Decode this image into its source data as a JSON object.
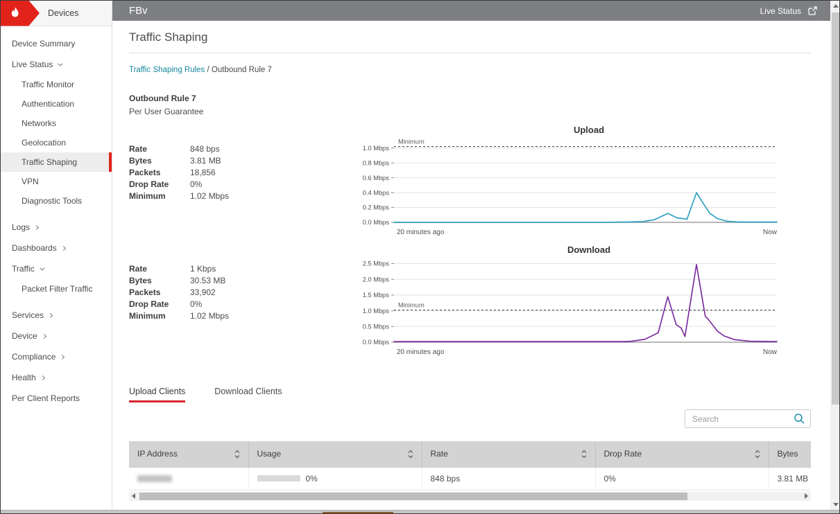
{
  "topbar": {
    "device_name": "FBv",
    "live_status_label": "Live Status"
  },
  "sidebar": {
    "header_label": "Devices",
    "items": [
      {
        "label": "Device Summary",
        "level": 0,
        "chevron": "none",
        "selected": false,
        "group_gap": false
      },
      {
        "label": "Live Status",
        "level": 0,
        "chevron": "down",
        "selected": false,
        "group_gap": false
      },
      {
        "label": "Traffic Monitor",
        "level": 1,
        "chevron": "none",
        "selected": false,
        "group_gap": false
      },
      {
        "label": "Authentication",
        "level": 1,
        "chevron": "none",
        "selected": false,
        "group_gap": false
      },
      {
        "label": "Networks",
        "level": 1,
        "chevron": "none",
        "selected": false,
        "group_gap": false
      },
      {
        "label": "Geolocation",
        "level": 1,
        "chevron": "none",
        "selected": false,
        "group_gap": false
      },
      {
        "label": "Traffic Shaping",
        "level": 1,
        "chevron": "none",
        "selected": true,
        "group_gap": false
      },
      {
        "label": "VPN",
        "level": 1,
        "chevron": "none",
        "selected": false,
        "group_gap": false
      },
      {
        "label": "Diagnostic Tools",
        "level": 1,
        "chevron": "none",
        "selected": false,
        "group_gap": false
      },
      {
        "label": "Logs",
        "level": 0,
        "chevron": "right",
        "selected": false,
        "group_gap": true
      },
      {
        "label": "Dashboards",
        "level": 0,
        "chevron": "right",
        "selected": false,
        "group_gap": false
      },
      {
        "label": "Traffic",
        "level": 0,
        "chevron": "down",
        "selected": false,
        "group_gap": false
      },
      {
        "label": "Packet Filter Traffic",
        "level": 1,
        "chevron": "none",
        "selected": false,
        "group_gap": false
      },
      {
        "label": "Services",
        "level": 0,
        "chevron": "right",
        "selected": false,
        "group_gap": true
      },
      {
        "label": "Device",
        "level": 0,
        "chevron": "right",
        "selected": false,
        "group_gap": false
      },
      {
        "label": "Compliance",
        "level": 0,
        "chevron": "right",
        "selected": false,
        "group_gap": false
      },
      {
        "label": "Health",
        "level": 0,
        "chevron": "right",
        "selected": false,
        "group_gap": false
      },
      {
        "label": "Per Client Reports",
        "level": 0,
        "chevron": "none",
        "selected": false,
        "group_gap": false
      }
    ]
  },
  "page": {
    "title": "Traffic Shaping",
    "breadcrumb": {
      "link": "Traffic Shaping Rules",
      "separator": " / ",
      "current": "Outbound Rule 7"
    },
    "rule_name": "Outbound Rule 7",
    "rule_type": "Per User Guarantee"
  },
  "upload_stats": [
    {
      "label": "Rate",
      "value": "848 bps"
    },
    {
      "label": "Bytes",
      "value": "3.81 MB"
    },
    {
      "label": "Packets",
      "value": "18,856"
    },
    {
      "label": "Drop Rate",
      "value": "0%"
    },
    {
      "label": "Minimum",
      "value": "1.02 Mbps"
    }
  ],
  "download_stats": [
    {
      "label": "Rate",
      "value": "1 Kbps"
    },
    {
      "label": "Bytes",
      "value": "30.53 MB"
    },
    {
      "label": "Packets",
      "value": "33,902"
    },
    {
      "label": "Drop Rate",
      "value": "0%"
    },
    {
      "label": "Minimum",
      "value": "1.02 Mbps"
    }
  ],
  "chart_data": [
    {
      "type": "line",
      "title": "Upload",
      "xlabel": "",
      "ylabel": "Mbps",
      "y_ticks": [
        0,
        0.2,
        0.4,
        0.6,
        0.8,
        1.0
      ],
      "y_tick_suffix": " Mbps",
      "y_max": 1.1,
      "ylim": [
        0,
        1.1
      ],
      "grid": true,
      "reference_line": {
        "label": "Minimum",
        "value": 1.02,
        "style": "dashed"
      },
      "x_axis": {
        "left_label": "20 minutes ago",
        "right_label": "Now"
      },
      "series": [
        {
          "name": "Upload rate",
          "color": "#2f9fc0",
          "points": [
            [
              0,
              0
            ],
            [
              0.55,
              0
            ],
            [
              0.61,
              0.005
            ],
            [
              0.65,
              0.01
            ],
            [
              0.68,
              0.035
            ],
            [
              0.715,
              0.12
            ],
            [
              0.74,
              0.06
            ],
            [
              0.757,
              0.05
            ],
            [
              0.765,
              0.04
            ],
            [
              0.79,
              0.4
            ],
            [
              0.807,
              0.26
            ],
            [
              0.825,
              0.12
            ],
            [
              0.845,
              0.05
            ],
            [
              0.87,
              0.015
            ],
            [
              0.9,
              0.005
            ],
            [
              1,
              0.005
            ]
          ]
        }
      ]
    },
    {
      "type": "line",
      "title": "Download",
      "xlabel": "",
      "ylabel": "Mbps",
      "y_ticks": [
        0,
        0.5,
        1.0,
        1.5,
        2.0,
        2.5
      ],
      "y_tick_suffix": " Mbps",
      "y_max": 2.6,
      "ylim": [
        0,
        2.6
      ],
      "grid": true,
      "reference_line": {
        "label": "Minimum",
        "value": 1.02,
        "style": "dashed"
      },
      "x_axis": {
        "left_label": "20 minutes ago",
        "right_label": "Now"
      },
      "series": [
        {
          "name": "Download rate",
          "color": "#7c2f9f",
          "points": [
            [
              0,
              0.02
            ],
            [
              0.6,
              0.02
            ],
            [
              0.62,
              0.03
            ],
            [
              0.655,
              0.09
            ],
            [
              0.69,
              0.3
            ],
            [
              0.715,
              1.45
            ],
            [
              0.737,
              0.56
            ],
            [
              0.75,
              0.45
            ],
            [
              0.76,
              0.18
            ],
            [
              0.79,
              2.47
            ],
            [
              0.813,
              0.82
            ],
            [
              0.82,
              0.74
            ],
            [
              0.845,
              0.35
            ],
            [
              0.862,
              0.2
            ],
            [
              0.89,
              0.08
            ],
            [
              0.93,
              0.03
            ],
            [
              1,
              0.02
            ]
          ]
        }
      ]
    }
  ],
  "tabs": [
    {
      "label": "Upload Clients",
      "active": true
    },
    {
      "label": "Download Clients",
      "active": false
    }
  ],
  "search": {
    "placeholder": "Search"
  },
  "table": {
    "columns": [
      {
        "label": "IP Address",
        "sortable": true
      },
      {
        "label": "Usage",
        "sortable": true
      },
      {
        "label": "Rate",
        "sortable": true
      },
      {
        "label": "Drop Rate",
        "sortable": true
      },
      {
        "label": "Bytes",
        "sortable": false
      }
    ],
    "rows": [
      {
        "ip_redacted": true,
        "usage_label": "0%",
        "usage_percent": 0,
        "rate": "848 bps",
        "drop_rate": "0%",
        "bytes": "3.81 MB"
      }
    ]
  },
  "colors": {
    "brand_red": "#e2231c",
    "topbar_gray": "#7d7f82",
    "link_teal": "#17879e",
    "upload_line": "#2f9fc0",
    "download_line": "#7c2f9f"
  }
}
